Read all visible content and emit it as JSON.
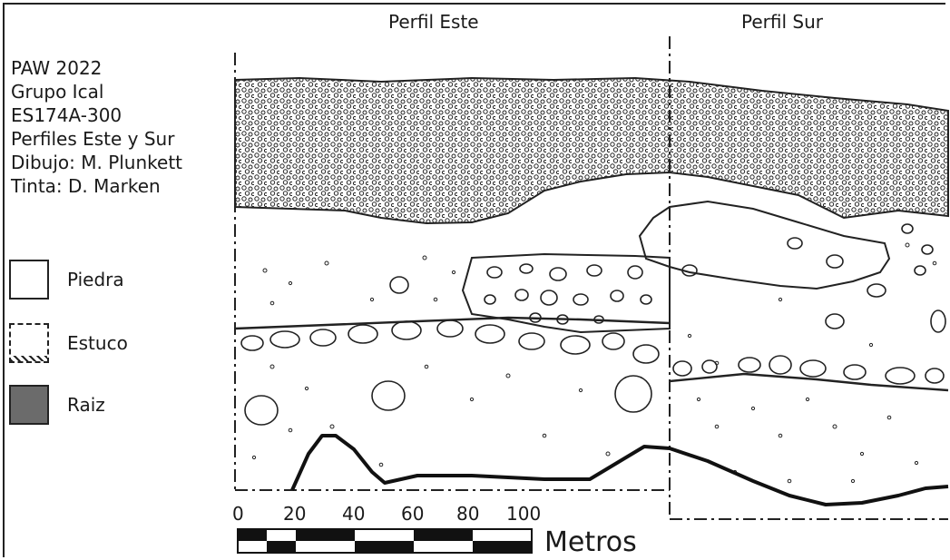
{
  "headers": {
    "east": "Perfil Este",
    "south": "Perfil Sur"
  },
  "info_lines": [
    "PAW 2022",
    "Grupo Ical",
    "ES174A-300",
    "Perfiles Este y Sur",
    "Dibujo: M. Plunkett",
    "Tinta: D. Marken"
  ],
  "legend": [
    {
      "label": "Piedra",
      "swatch": "stone"
    },
    {
      "label": "Estuco",
      "swatch": "stucco"
    },
    {
      "label": "Raiz",
      "swatch": "root",
      "color": "#6b6b6b"
    }
  ],
  "scale": {
    "ticks": [
      "0",
      "20",
      "40",
      "60",
      "80",
      "100"
    ],
    "unit": "Metros"
  }
}
